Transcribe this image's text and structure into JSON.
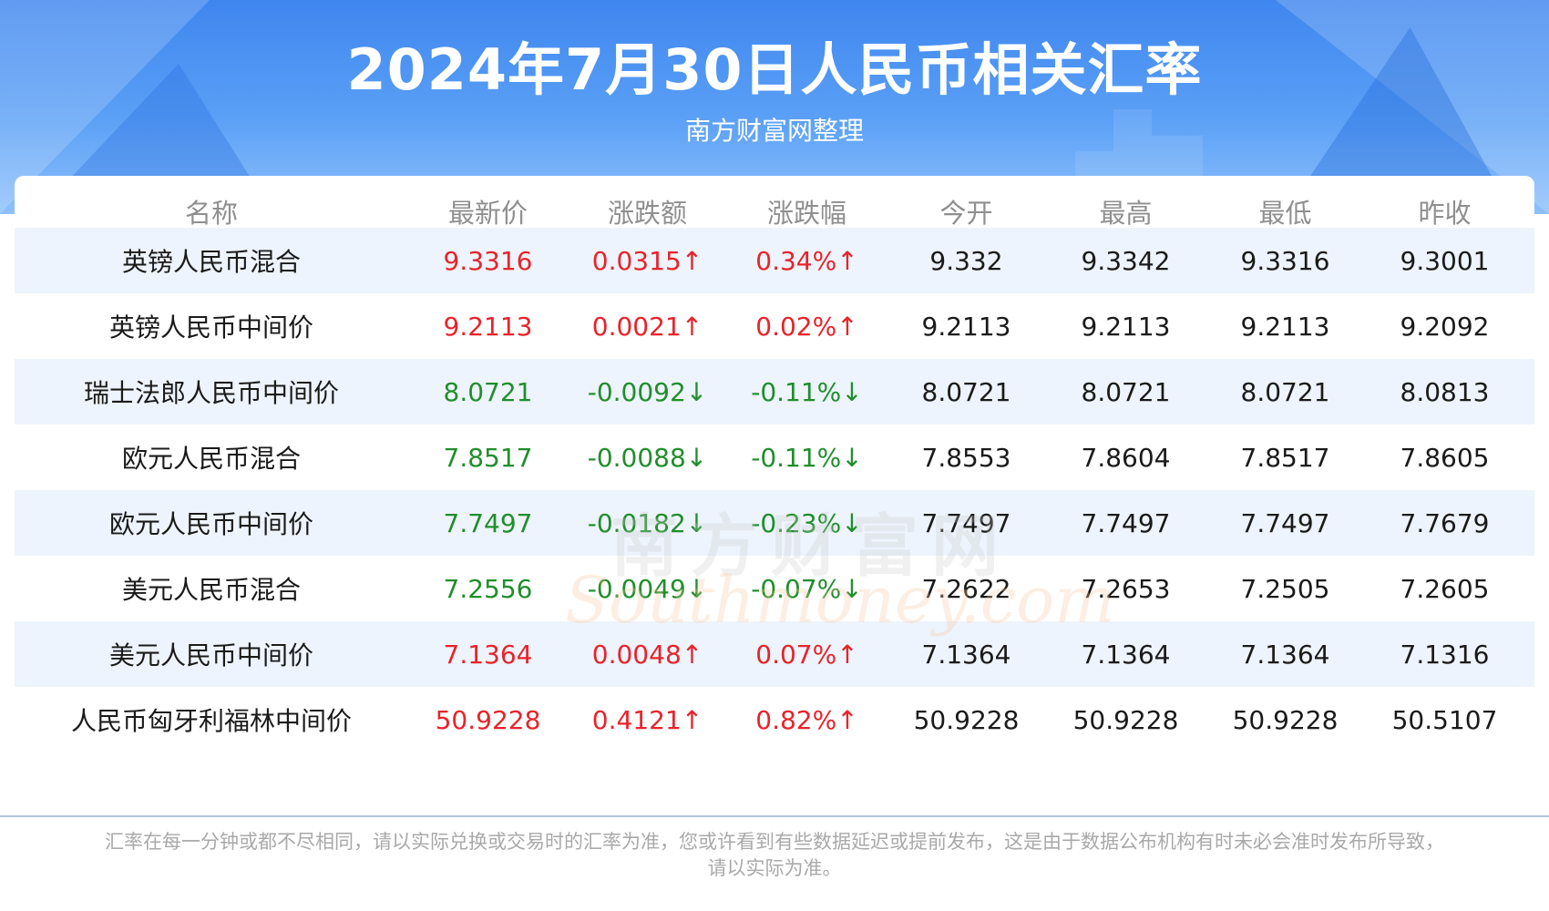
{
  "header": {
    "title": "2024年7月30日人民币相关汇率",
    "subtitle": "南方财富网整理"
  },
  "table": {
    "columns": [
      "名称",
      "最新价",
      "涨跌额",
      "涨跌幅",
      "今开",
      "最高",
      "最低",
      "昨收"
    ],
    "rows": [
      {
        "name": "英镑人民币混合",
        "latest": "9.3316",
        "change": "0.0315↑",
        "pct": "0.34%↑",
        "open": "9.332",
        "high": "9.3342",
        "low": "9.3316",
        "prev": "9.3001",
        "trend": "up"
      },
      {
        "name": "英镑人民币中间价",
        "latest": "9.2113",
        "change": "0.0021↑",
        "pct": "0.02%↑",
        "open": "9.2113",
        "high": "9.2113",
        "low": "9.2113",
        "prev": "9.2092",
        "trend": "up"
      },
      {
        "name": "瑞士法郎人民币中间价",
        "latest": "8.0721",
        "change": "-0.0092↓",
        "pct": "-0.11%↓",
        "open": "8.0721",
        "high": "8.0721",
        "low": "8.0721",
        "prev": "8.0813",
        "trend": "down"
      },
      {
        "name": "欧元人民币混合",
        "latest": "7.8517",
        "change": "-0.0088↓",
        "pct": "-0.11%↓",
        "open": "7.8553",
        "high": "7.8604",
        "low": "7.8517",
        "prev": "7.8605",
        "trend": "down"
      },
      {
        "name": "欧元人民币中间价",
        "latest": "7.7497",
        "change": "-0.0182↓",
        "pct": "-0.23%↓",
        "open": "7.7497",
        "high": "7.7497",
        "low": "7.7497",
        "prev": "7.7679",
        "trend": "down"
      },
      {
        "name": "美元人民币混合",
        "latest": "7.2556",
        "change": "-0.0049↓",
        "pct": "-0.07%↓",
        "open": "7.2622",
        "high": "7.2653",
        "low": "7.2505",
        "prev": "7.2605",
        "trend": "down"
      },
      {
        "name": "美元人民币中间价",
        "latest": "7.1364",
        "change": "0.0048↑",
        "pct": "0.07%↑",
        "open": "7.1364",
        "high": "7.1364",
        "low": "7.1364",
        "prev": "7.1316",
        "trend": "up"
      },
      {
        "name": "人民币匈牙利福林中间价",
        "latest": "50.9228",
        "change": "0.4121↑",
        "pct": "0.82%↑",
        "open": "50.9228",
        "high": "50.9228",
        "low": "50.9228",
        "prev": "50.5107",
        "trend": "up"
      }
    ]
  },
  "watermark": {
    "cn": "南方财富网",
    "en": "Southmoney.com"
  },
  "footer": {
    "line1": "汇率在每一分钟或都不尽相同，请以实际兑换或交易时的汇率为准，您或许看到有些数据延迟或提前发布，这是由于数据公布机构有时未必会准时发布所导致，",
    "line2": "请以实际为准。"
  },
  "colors": {
    "up": "#e8232b",
    "down": "#1f8f2b",
    "header_blue": "#3f86ef",
    "row_alt": "#eef4fd"
  }
}
